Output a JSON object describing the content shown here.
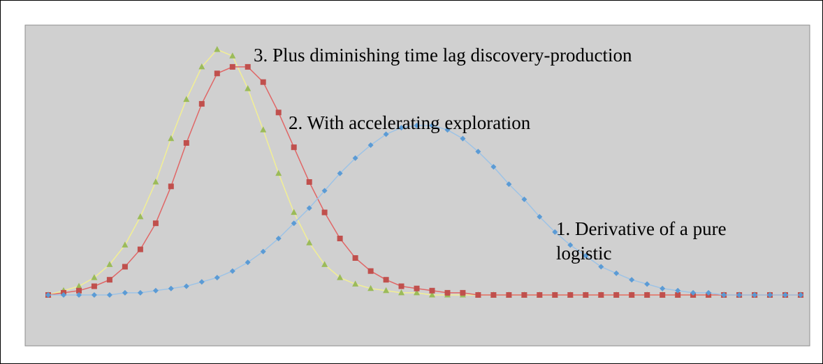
{
  "chart_data": {
    "type": "line",
    "title": "",
    "xlabel": "",
    "ylabel": "",
    "xlim": [
      1,
      50
    ],
    "ylim": [
      0,
      1.1
    ],
    "grid": false,
    "legend": "none",
    "background": "#d0d0d0",
    "series": [
      {
        "label": "1. Derivative of a pure logistic",
        "color": "#5b9bd5",
        "line_color": "#9dc3e6",
        "marker": "diamond",
        "values": [
          0.0,
          0.0,
          0.0,
          0.0,
          0.0,
          0.01,
          0.01,
          0.02,
          0.03,
          0.04,
          0.06,
          0.08,
          0.11,
          0.15,
          0.2,
          0.26,
          0.33,
          0.4,
          0.48,
          0.56,
          0.63,
          0.69,
          0.74,
          0.77,
          0.78,
          0.78,
          0.76,
          0.72,
          0.66,
          0.59,
          0.51,
          0.44,
          0.36,
          0.29,
          0.23,
          0.18,
          0.13,
          0.1,
          0.07,
          0.05,
          0.03,
          0.02,
          0.01,
          0.01,
          0.0,
          0.0,
          0.0,
          0.0,
          0.0,
          0.0
        ]
      },
      {
        "label": "2. With accelerating exploration",
        "color": "#c0504d",
        "line_color": "#e06666",
        "marker": "square",
        "values": [
          0.0,
          0.01,
          0.02,
          0.04,
          0.07,
          0.13,
          0.21,
          0.33,
          0.5,
          0.7,
          0.88,
          1.02,
          1.05,
          1.05,
          0.98,
          0.84,
          0.68,
          0.52,
          0.38,
          0.26,
          0.17,
          0.11,
          0.07,
          0.04,
          0.03,
          0.02,
          0.01,
          0.01,
          0.0,
          0.0,
          0.0,
          0.0,
          0.0,
          0.0,
          0.0,
          0.0,
          0.0,
          0.0,
          0.0,
          0.0,
          0.0,
          0.0,
          0.0,
          0.0,
          0.0,
          0.0,
          0.0,
          0.0,
          0.0,
          0.0
        ]
      },
      {
        "label": "3. Plus diminishing time lag discovery-production",
        "color": "#9bbb59",
        "line_color": "#f2ef94",
        "marker": "triangle",
        "values": [
          0.0,
          0.02,
          0.04,
          0.08,
          0.14,
          0.23,
          0.36,
          0.52,
          0.72,
          0.9,
          1.05,
          1.13,
          1.1,
          0.95,
          0.76,
          0.56,
          0.38,
          0.24,
          0.14,
          0.08,
          0.05,
          0.03,
          0.02,
          0.01,
          0.01,
          0.0,
          0.0,
          0.0,
          0.0,
          0.0,
          0.0,
          0.0,
          0.0,
          0.0,
          0.0,
          0.0,
          0.0,
          0.0,
          0.0,
          0.0,
          0.0,
          0.0,
          0.0,
          0.0,
          0.0,
          0.0,
          0.0,
          0.0,
          0.0,
          0.0
        ]
      }
    ],
    "annotations": {
      "line3": "3. Plus diminishing time lag discovery-production",
      "line2": "2. With accelerating exploration",
      "line1a": "1. Derivative of a pure",
      "line1b": "logistic"
    }
  }
}
